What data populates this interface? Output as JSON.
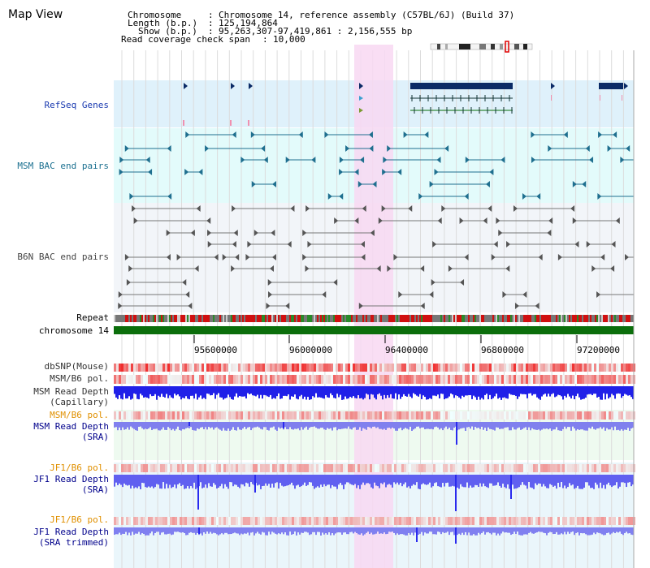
{
  "header": {
    "title": "Map View",
    "chromosome_key": "Chromosome",
    "chromosome_value": "Chromosome 14, reference assembly (C57BL/6J) (Build 37)",
    "length_key": "Length (b.p.)",
    "length_value": "125,194,864",
    "show_key": "Show (b.p.)",
    "show_value": "95,263,307-97,419,861 : 2,156,555 bp",
    "span_key": "Read coverage check span",
    "span_value": "10,000"
  },
  "tracks": {
    "refseq": "RefSeq Genes",
    "msm_bac": "MSM BAC end pairs",
    "b6n_bac": "B6N BAC end pairs",
    "repeat": "Repeat",
    "chromosome": "chromosome 14",
    "dbsnp": "dbSNP(Mouse)",
    "msm_b6_pol_1": "MSM/B6 pol.",
    "msm_read_depth_cap_1": "MSM Read Depth",
    "msm_read_depth_cap_2": "(Capillary)",
    "msm_b6_pol_2": "MSM/B6 pol.",
    "msm_read_depth_sra_1": "MSM Read Depth",
    "msm_read_depth_sra_2": "(SRA)",
    "jf1_b6_pol_1": "JF1/B6 pol.",
    "jf1_read_depth_sra_1": "JF1 Read Depth",
    "jf1_read_depth_sra_2": "(SRA)",
    "jf1_b6_pol_2": "JF1/B6 pol.",
    "jf1_read_depth_trim_1": "JF1 Read Depth",
    "jf1_read_depth_trim_2": "(SRA trimmed)"
  },
  "axis": {
    "ticks": [
      "95600000",
      "96000000",
      "96400000",
      "96800000",
      "97200000"
    ]
  },
  "colors": {
    "refseq_bg": "#dff1fb",
    "msm_bg": "#e3fbfb",
    "b6n_bg": "#f2f5f9",
    "highlight": "#f8d8f2",
    "chromosome": "#0b6e0b",
    "gene": "#0a2a66",
    "msm_feature": "#1f6f8f",
    "b6n_feature": "#555555",
    "depth_cap": "#2020e8",
    "depth_sra": "#8080ee",
    "depth_label": "#00008b",
    "pol_label": "#e09000"
  }
}
